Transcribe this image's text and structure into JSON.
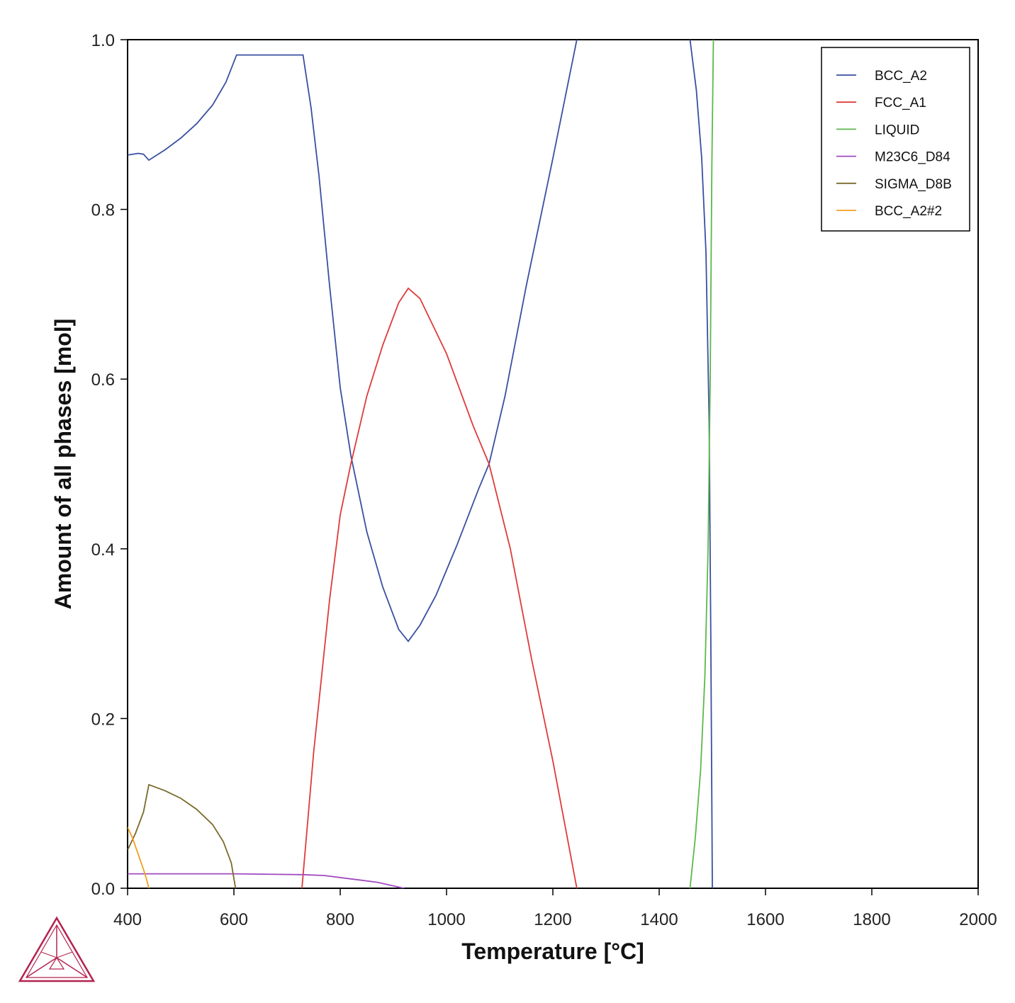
{
  "chart_data": {
    "type": "line",
    "title": "",
    "xlabel": "Temperature [°C]",
    "ylabel": "Amount of all phases [mol]",
    "xlim": [
      400,
      2000
    ],
    "ylim": [
      0,
      1.0
    ],
    "xticks": [
      "400",
      "600",
      "800",
      "1000",
      "1200",
      "1400",
      "1600",
      "1800",
      "2000"
    ],
    "yticks": [
      "0.0",
      "0.2",
      "0.4",
      "0.6",
      "0.8",
      "1.0"
    ],
    "grid": false,
    "legend_position": "top-right",
    "series": [
      {
        "name": "BCC_A2",
        "color": "#3a4fa0",
        "points": [
          [
            400,
            0.864
          ],
          [
            420,
            0.866
          ],
          [
            430,
            0.865
          ],
          [
            440,
            0.858
          ],
          [
            470,
            0.87
          ],
          [
            500,
            0.884
          ],
          [
            530,
            0.901
          ],
          [
            560,
            0.923
          ],
          [
            585,
            0.95
          ],
          [
            605,
            0.982
          ],
          [
            730,
            0.982
          ],
          [
            745,
            0.92
          ],
          [
            760,
            0.84
          ],
          [
            780,
            0.71
          ],
          [
            800,
            0.59
          ],
          [
            820,
            0.51
          ],
          [
            850,
            0.42
          ],
          [
            880,
            0.355
          ],
          [
            910,
            0.305
          ],
          [
            928,
            0.291
          ],
          [
            950,
            0.31
          ],
          [
            980,
            0.345
          ],
          [
            1020,
            0.405
          ],
          [
            1060,
            0.47
          ],
          [
            1080,
            0.5
          ],
          [
            1110,
            0.58
          ],
          [
            1150,
            0.71
          ],
          [
            1200,
            0.86
          ],
          [
            1245,
            1.0
          ]
        ]
      },
      {
        "name": "BCC_A2",
        "color": "#3a4fa0",
        "points": [
          [
            1458,
            1.0
          ],
          [
            1470,
            0.94
          ],
          [
            1480,
            0.86
          ],
          [
            1488,
            0.75
          ],
          [
            1494,
            0.55
          ],
          [
            1497,
            0.3
          ],
          [
            1499,
            0.1
          ],
          [
            1500,
            0.0
          ]
        ]
      },
      {
        "name": "FCC_A1",
        "color": "#e03a3a",
        "points": [
          [
            728,
            0.0
          ],
          [
            750,
            0.16
          ],
          [
            780,
            0.34
          ],
          [
            800,
            0.44
          ],
          [
            820,
            0.5
          ],
          [
            850,
            0.58
          ],
          [
            880,
            0.64
          ],
          [
            910,
            0.69
          ],
          [
            928,
            0.707
          ],
          [
            950,
            0.695
          ],
          [
            1000,
            0.63
          ],
          [
            1050,
            0.545
          ],
          [
            1080,
            0.5
          ],
          [
            1120,
            0.4
          ],
          [
            1160,
            0.27
          ],
          [
            1200,
            0.15
          ],
          [
            1245,
            0.0
          ]
        ]
      },
      {
        "name": "LIQUID",
        "color": "#5cb84a",
        "points": [
          [
            1458,
            0.0
          ],
          [
            1468,
            0.06
          ],
          [
            1478,
            0.14
          ],
          [
            1486,
            0.25
          ],
          [
            1492,
            0.4
          ],
          [
            1496,
            0.6
          ],
          [
            1499,
            0.85
          ],
          [
            1502,
            1.0
          ]
        ]
      },
      {
        "name": "M23C6_D84",
        "color": "#a04ac0",
        "points": [
          [
            400,
            0.017
          ],
          [
            600,
            0.017
          ],
          [
            730,
            0.016
          ],
          [
            770,
            0.015
          ],
          [
            820,
            0.011
          ],
          [
            870,
            0.007
          ],
          [
            920,
            0.0
          ]
        ]
      },
      {
        "name": "SIGMA_D8B",
        "color": "#7a6a2a",
        "points": [
          [
            400,
            0.045
          ],
          [
            415,
            0.065
          ],
          [
            430,
            0.09
          ],
          [
            440,
            0.122
          ],
          [
            470,
            0.115
          ],
          [
            500,
            0.106
          ],
          [
            530,
            0.093
          ],
          [
            560,
            0.075
          ],
          [
            580,
            0.055
          ],
          [
            595,
            0.03
          ],
          [
            603,
            0.0
          ]
        ]
      },
      {
        "name": "BCC_A2#2",
        "color": "#f0a020",
        "points": [
          [
            400,
            0.072
          ],
          [
            410,
            0.058
          ],
          [
            420,
            0.04
          ],
          [
            430,
            0.022
          ],
          [
            436,
            0.01
          ],
          [
            440,
            0.0
          ]
        ]
      }
    ]
  }
}
